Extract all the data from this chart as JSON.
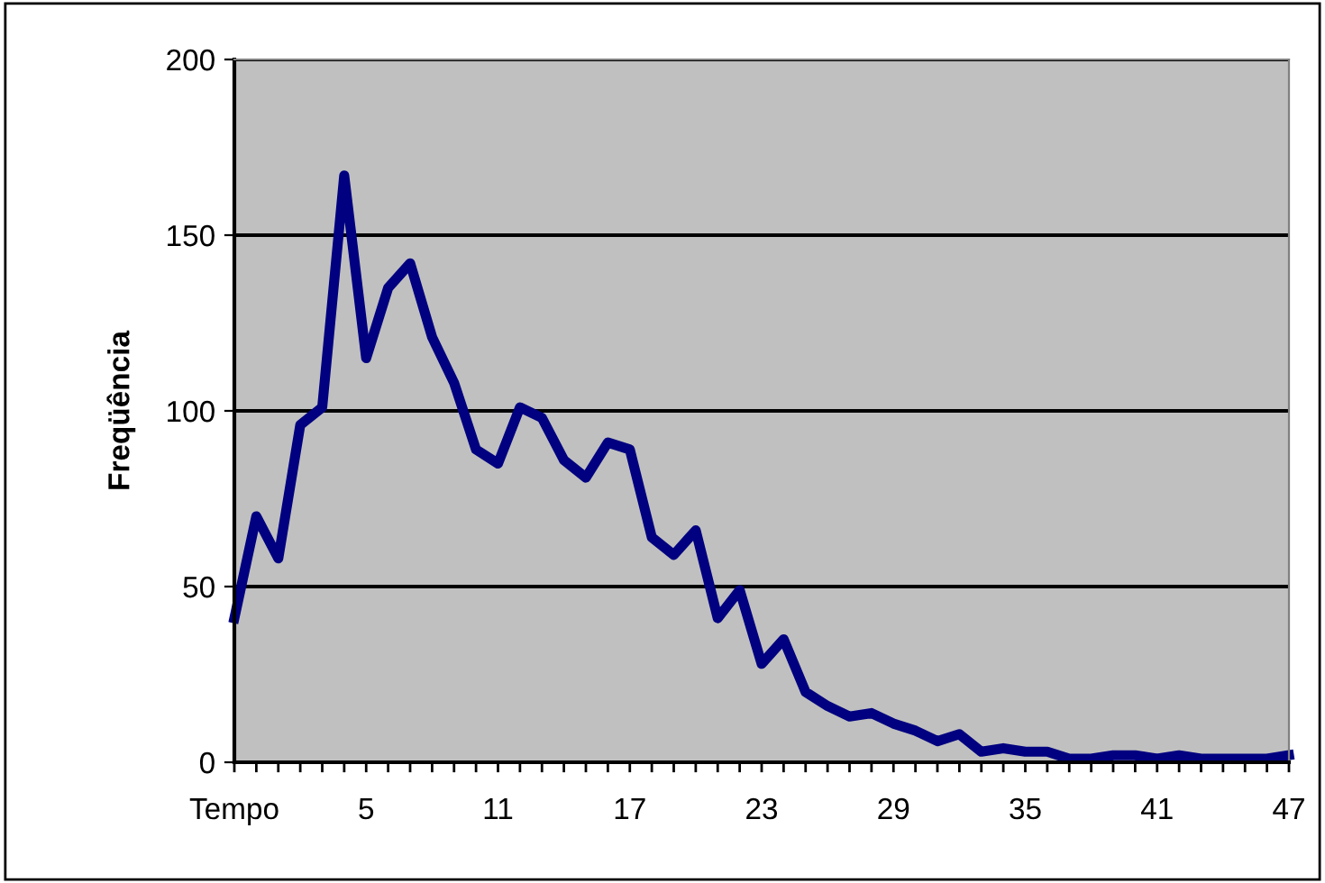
{
  "chart_data": {
    "type": "line",
    "ylabel": "Freqüência",
    "categories": [
      "Tempo",
      null,
      null,
      null,
      null,
      null,
      "5",
      null,
      null,
      null,
      null,
      null,
      "11",
      null,
      null,
      null,
      null,
      null,
      "17",
      null,
      null,
      null,
      null,
      null,
      "23",
      null,
      null,
      null,
      null,
      null,
      "29",
      null,
      null,
      null,
      null,
      null,
      "35",
      null,
      null,
      null,
      null,
      null,
      "41",
      null,
      null,
      null,
      null,
      null,
      "47"
    ],
    "series": [
      {
        "color": "#000080",
        "values": [
          41,
          70,
          58,
          96,
          101,
          167,
          115,
          135,
          142,
          121,
          108,
          89,
          85,
          101,
          98,
          86,
          81,
          91,
          89,
          64,
          59,
          66,
          41,
          49,
          28,
          35,
          20,
          16,
          13,
          14,
          11,
          9,
          6,
          8,
          3,
          4,
          3,
          3,
          1,
          1,
          2,
          2,
          1,
          2,
          1,
          1,
          1,
          1,
          2
        ]
      }
    ],
    "ylim": [
      0,
      200
    ],
    "yticks": [
      0,
      50,
      100,
      150,
      200
    ],
    "grid": "y",
    "legend": false,
    "marker": "none",
    "line_style": "solid"
  }
}
